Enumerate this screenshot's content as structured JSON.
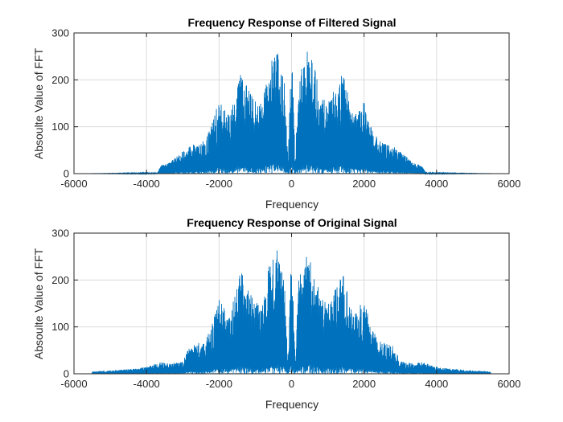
{
  "colors": {
    "series": "#0072BD",
    "axis": "#262626",
    "grid": "#dcdcdc",
    "background": "#ffffff"
  },
  "chart_data": [
    {
      "type": "line",
      "title": "Frequency Response of Filtered Signal",
      "xlabel": "Frequency",
      "ylabel": "Absoulte Value of FFT",
      "xlim": [
        -6000,
        6000
      ],
      "ylim": [
        0,
        300
      ],
      "xticks": [
        -6000,
        -4000,
        -2000,
        0,
        2000,
        4000,
        6000
      ],
      "yticks": [
        0,
        100,
        200,
        300
      ],
      "grid": true,
      "series": [
        {
          "envelope": {
            "x": [
              -5500,
              -3700,
              -3600,
              -3400,
              -2800,
              -2400,
              -2200,
              -2000,
              -1700,
              -1400,
              -1200,
              -1000,
              -800,
              -600,
              -500,
              -400,
              -300,
              -200,
              -100,
              0,
              100,
              200,
              300,
              400,
              500,
              600,
              800,
              1000,
              1200,
              1400,
              1700,
              2000,
              2200,
              2400,
              2800,
              3400,
              3600,
              3700,
              5500
            ],
            "y": [
              0,
              2,
              18,
              22,
              60,
              70,
              105,
              160,
              125,
              220,
              180,
              155,
              160,
              245,
              250,
              265,
              230,
              200,
              30,
              280,
              30,
              200,
              230,
              265,
              250,
              245,
              160,
              155,
              180,
              220,
              125,
              160,
              105,
              70,
              60,
              22,
              18,
              2,
              0
            ]
          }
        }
      ]
    },
    {
      "type": "line",
      "title": "Frequency Response of Original Signal",
      "xlabel": "Frequency",
      "ylabel": "Absoulte Value of FFT",
      "xlim": [
        -6000,
        6000
      ],
      "ylim": [
        0,
        300
      ],
      "xticks": [
        -6000,
        -4000,
        -2000,
        0,
        2000,
        4000,
        6000
      ],
      "yticks": [
        0,
        100,
        200,
        300
      ],
      "grid": true,
      "series": [
        {
          "envelope": {
            "x": [
              -5500,
              -5000,
              -4500,
              -4000,
              -3600,
              -3400,
              -3000,
              -2800,
              -2400,
              -2200,
              -2000,
              -1700,
              -1400,
              -1200,
              -1000,
              -800,
              -600,
              -500,
              -400,
              -300,
              -200,
              -100,
              0,
              100,
              200,
              300,
              400,
              500,
              600,
              800,
              1000,
              1200,
              1400,
              1700,
              2000,
              2200,
              2400,
              2800,
              3000,
              3400,
              3600,
              4000,
              4500,
              5000,
              5500
            ],
            "y": [
              5,
              7,
              10,
              15,
              25,
              22,
              28,
              60,
              70,
              105,
              160,
              125,
              220,
              180,
              155,
              160,
              245,
              250,
              265,
              230,
              200,
              30,
              280,
              30,
              200,
              230,
              265,
              250,
              245,
              160,
              155,
              180,
              220,
              125,
              160,
              105,
              70,
              60,
              28,
              22,
              25,
              15,
              10,
              7,
              5
            ]
          }
        }
      ]
    }
  ]
}
